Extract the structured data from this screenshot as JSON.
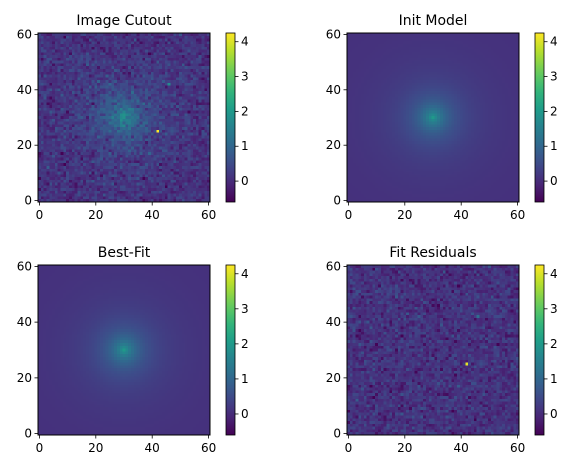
{
  "chart_data": [
    {
      "type": "heatmap",
      "title": "Image Cutout",
      "content": "image",
      "x_ticks": [
        "0",
        "20",
        "40",
        "60"
      ],
      "y_ticks": [
        "0",
        "20",
        "40",
        "60"
      ],
      "xlim": [
        -0.5,
        60.5
      ],
      "ylim": [
        -0.5,
        60.5
      ],
      "colorbar": {
        "ticks": [
          "0",
          "1",
          "2",
          "3",
          "4"
        ],
        "vmin": -0.6,
        "vmax": 4.25
      },
      "colormap": "viridis"
    },
    {
      "type": "heatmap",
      "title": "Init Model",
      "content": "model",
      "x_ticks": [
        "0",
        "20",
        "40",
        "60"
      ],
      "y_ticks": [
        "0",
        "20",
        "40",
        "60"
      ],
      "xlim": [
        -0.5,
        60.5
      ],
      "ylim": [
        -0.5,
        60.5
      ],
      "colorbar": {
        "ticks": [
          "0",
          "1",
          "2",
          "3",
          "4"
        ],
        "vmin": -0.6,
        "vmax": 4.25
      },
      "colormap": "viridis"
    },
    {
      "type": "heatmap",
      "title": "Best-Fit",
      "content": "model",
      "x_ticks": [
        "0",
        "20",
        "40",
        "60"
      ],
      "y_ticks": [
        "0",
        "20",
        "40",
        "60"
      ],
      "xlim": [
        -0.5,
        60.5
      ],
      "ylim": [
        -0.5,
        60.5
      ],
      "colorbar": {
        "ticks": [
          "0",
          "1",
          "2",
          "3",
          "4"
        ],
        "vmin": -0.6,
        "vmax": 4.25
      },
      "colormap": "viridis"
    },
    {
      "type": "heatmap",
      "title": "Fit Residuals",
      "content": "residual",
      "x_ticks": [
        "0",
        "20",
        "40",
        "60"
      ],
      "y_ticks": [
        "0",
        "20",
        "40",
        "60"
      ],
      "xlim": [
        -0.5,
        60.5
      ],
      "ylim": [
        -0.5,
        60.5
      ],
      "colorbar": {
        "ticks": [
          "0",
          "1",
          "2",
          "3",
          "4"
        ],
        "vmin": -0.6,
        "vmax": 4.25
      },
      "colormap": "viridis"
    }
  ]
}
